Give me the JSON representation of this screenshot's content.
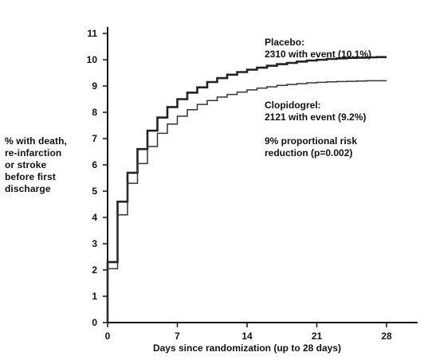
{
  "chart_data": {
    "type": "line",
    "line_style": "step",
    "xlabel": "Days since randomization (up to 28 days)",
    "ylabel_lines": [
      "% with death,",
      "re-infarction",
      "or stroke",
      "before first",
      "discharge"
    ],
    "xlim": [
      0,
      28
    ],
    "ylim": [
      0,
      11
    ],
    "x_ticks": [
      0,
      7,
      14,
      21,
      28
    ],
    "y_ticks": [
      0,
      1,
      2,
      3,
      4,
      5,
      6,
      7,
      8,
      9,
      10,
      11
    ],
    "grid": false,
    "series": [
      {
        "name": "Placebo",
        "color": "#222222",
        "line_weight": "thick",
        "points": [
          [
            0,
            2.3
          ],
          [
            1,
            4.6
          ],
          [
            2,
            5.7
          ],
          [
            3,
            6.6
          ],
          [
            4,
            7.3
          ],
          [
            5,
            7.8
          ],
          [
            6,
            8.2
          ],
          [
            7,
            8.5
          ],
          [
            8,
            8.75
          ],
          [
            9,
            8.95
          ],
          [
            10,
            9.15
          ],
          [
            11,
            9.3
          ],
          [
            12,
            9.43
          ],
          [
            13,
            9.53
          ],
          [
            14,
            9.62
          ],
          [
            15,
            9.7
          ],
          [
            16,
            9.77
          ],
          [
            17,
            9.83
          ],
          [
            18,
            9.88
          ],
          [
            19,
            9.93
          ],
          [
            20,
            9.97
          ],
          [
            21,
            10.0
          ],
          [
            22,
            10.03
          ],
          [
            23,
            10.05
          ],
          [
            24,
            10.07
          ],
          [
            25,
            10.08
          ],
          [
            26,
            10.09
          ],
          [
            27,
            10.1
          ],
          [
            28,
            10.1
          ]
        ]
      },
      {
        "name": "Clopidogrel",
        "color": "#333333",
        "line_weight": "thin",
        "points": [
          [
            0,
            2.05
          ],
          [
            1,
            4.1
          ],
          [
            2,
            5.3
          ],
          [
            3,
            6.05
          ],
          [
            4,
            6.7
          ],
          [
            5,
            7.2
          ],
          [
            6,
            7.55
          ],
          [
            7,
            7.85
          ],
          [
            8,
            8.1
          ],
          [
            9,
            8.3
          ],
          [
            10,
            8.45
          ],
          [
            11,
            8.58
          ],
          [
            12,
            8.68
          ],
          [
            13,
            8.77
          ],
          [
            14,
            8.85
          ],
          [
            15,
            8.92
          ],
          [
            16,
            8.97
          ],
          [
            17,
            9.02
          ],
          [
            18,
            9.06
          ],
          [
            19,
            9.09
          ],
          [
            20,
            9.12
          ],
          [
            21,
            9.14
          ],
          [
            22,
            9.16
          ],
          [
            23,
            9.17
          ],
          [
            24,
            9.18
          ],
          [
            25,
            9.19
          ],
          [
            26,
            9.2
          ],
          [
            27,
            9.2
          ],
          [
            28,
            9.2
          ]
        ]
      }
    ],
    "annotations": {
      "placebo": [
        "Placebo:",
        "2310 with event (10.1%)"
      ],
      "clopidogrel": [
        "Clopidogrel:",
        "2121 with event (9.2%)"
      ],
      "risk_reduction": [
        "9% proportional risk",
        "reduction (p=0.002)"
      ]
    }
  }
}
